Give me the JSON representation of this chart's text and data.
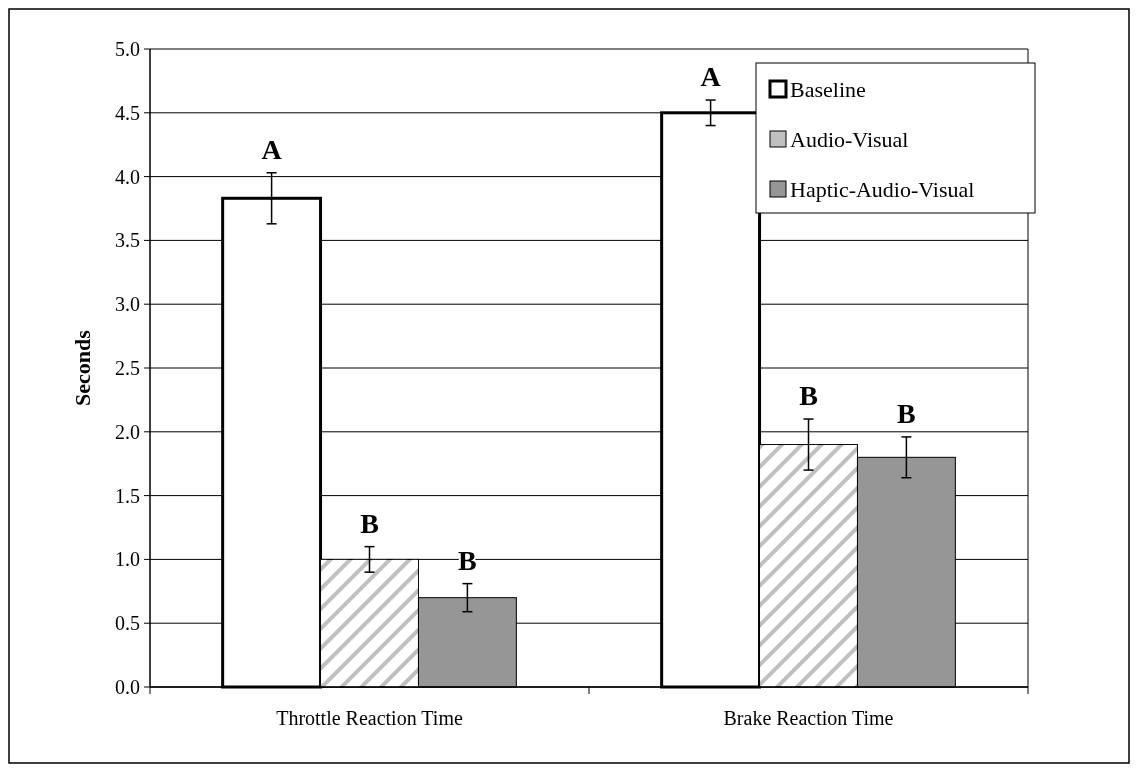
{
  "chart_data": {
    "type": "bar",
    "ylabel": "Seconds",
    "categories": [
      "Throttle Reaction Time",
      "Brake Reaction Time"
    ],
    "series": [
      {
        "name": "Baseline",
        "color": "#ffffff",
        "values": [
          3.83,
          4.5
        ],
        "errors": [
          0.2,
          0.1
        ],
        "value_labels": [
          "A",
          "A"
        ]
      },
      {
        "name": "Audio-Visual",
        "color": "#c0c0c0",
        "values": [
          1.0,
          1.9
        ],
        "errors": [
          0.1,
          0.2
        ],
        "value_labels": [
          "B",
          "B"
        ]
      },
      {
        "name": "Haptic-Audio-Visual",
        "color": "#969696",
        "values": [
          0.7,
          1.8
        ],
        "errors": [
          0.11,
          0.16
        ],
        "value_labels": [
          "B",
          "B"
        ]
      }
    ],
    "ylim": [
      0,
      5
    ],
    "yticks": [
      {
        "value": 0,
        "label": "0.0"
      },
      {
        "value": 0.5,
        "label": "0.5"
      },
      {
        "value": 1,
        "label": "1.0"
      },
      {
        "value": 1.5,
        "label": "1.5"
      },
      {
        "value": 2,
        "label": "2.0"
      },
      {
        "value": 2.5,
        "label": "2.5"
      },
      {
        "value": 3,
        "label": "3.0"
      },
      {
        "value": 3.5,
        "label": "3.5"
      },
      {
        "value": 4,
        "label": "4.0"
      },
      {
        "value": 4.5,
        "label": "4.5"
      },
      {
        "value": 5,
        "label": "5.0"
      }
    ],
    "grid": "y",
    "legend": "top right"
  }
}
